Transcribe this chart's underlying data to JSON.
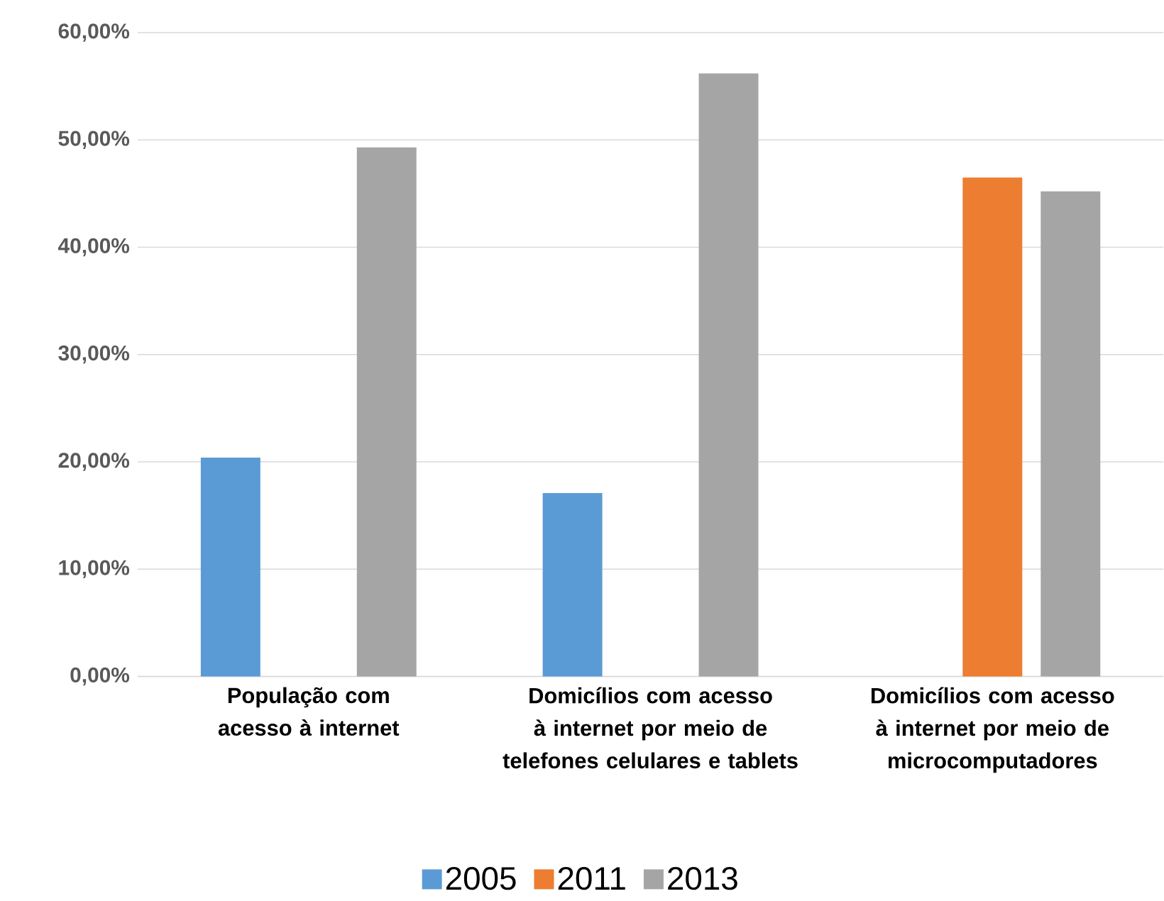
{
  "chart_data": {
    "type": "bar",
    "categories": [
      "População com acesso à internet",
      "Domicílios com acesso à internet por meio de telefones celulares e tablets",
      "Domicílios com acesso à internet por meio de microcomputadores"
    ],
    "series": [
      {
        "name": "2005",
        "color": "#5b9bd5",
        "values": [
          20.4,
          17.1,
          null
        ]
      },
      {
        "name": "2011",
        "color": "#ed7d31",
        "values": [
          null,
          null,
          46.5
        ]
      },
      {
        "name": "2013",
        "color": "#a5a5a5",
        "values": [
          49.3,
          56.2,
          45.2
        ]
      }
    ],
    "ylim": [
      0,
      60
    ],
    "yticks": [
      {
        "value": 0,
        "label": "0,00%"
      },
      {
        "value": 10,
        "label": "10,00%"
      },
      {
        "value": 20,
        "label": "20,00%"
      },
      {
        "value": 30,
        "label": "30,00%"
      },
      {
        "value": 40,
        "label": "40,00%"
      },
      {
        "value": 50,
        "label": "50,00%"
      },
      {
        "value": 60,
        "label": "60,00%"
      }
    ],
    "grid": "y",
    "legend": "bottom"
  }
}
